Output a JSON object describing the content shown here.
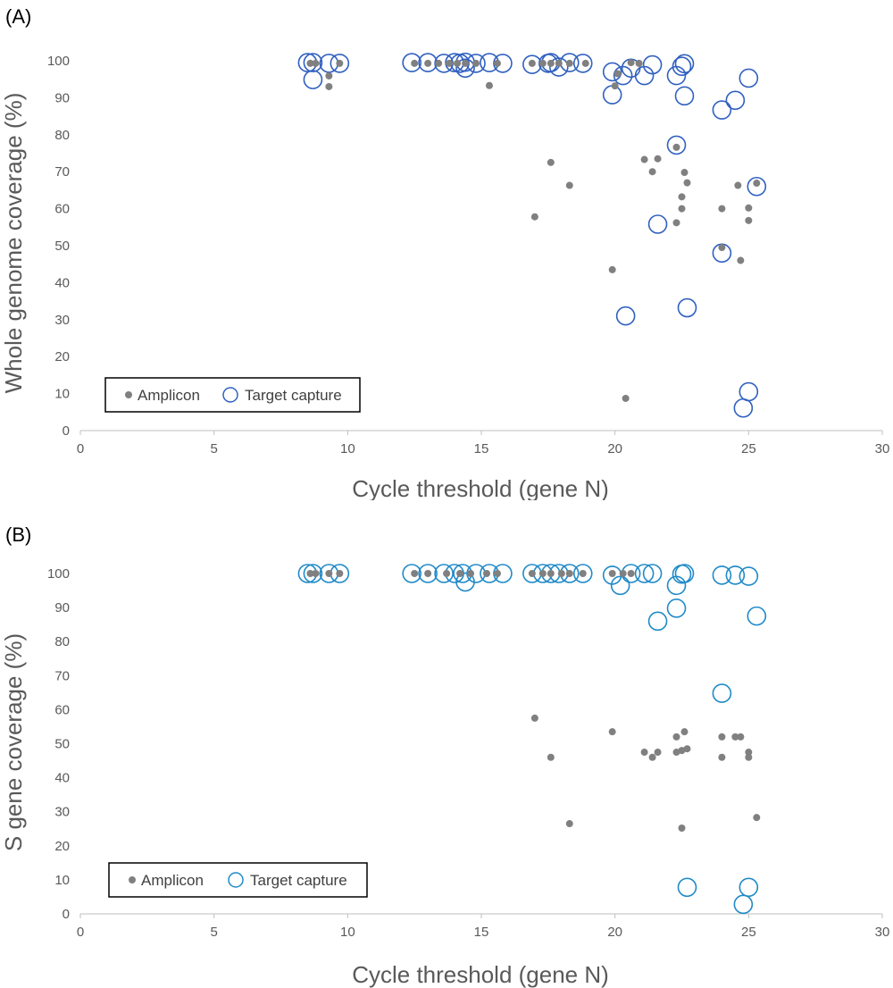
{
  "chart_data": [
    {
      "panel_label": "(A)",
      "type": "scatter",
      "xlabel": "Cycle threshold (gene N)",
      "ylabel": "Whole genome coverage (%)",
      "xlim": [
        0,
        30
      ],
      "ylim": [
        0,
        100
      ],
      "xticks": [
        0,
        5,
        10,
        15,
        20,
        25,
        30
      ],
      "yticks": [
        0,
        10,
        20,
        30,
        40,
        50,
        60,
        70,
        80,
        90,
        100
      ],
      "grid": false,
      "legend_placement": "bottom-left",
      "series": [
        {
          "name": "Amplicon",
          "marker": "filled-dot",
          "color": "#808080",
          "points": [
            [
              8.6,
              99.3
            ],
            [
              8.8,
              99.3
            ],
            [
              9.3,
              95.9
            ],
            [
              9.3,
              93.0
            ],
            [
              9.7,
              99.3
            ],
            [
              12.5,
              99.3
            ],
            [
              13.0,
              99.3
            ],
            [
              13.4,
              99.3
            ],
            [
              13.8,
              99.3
            ],
            [
              14.1,
              99.3
            ],
            [
              14.4,
              99.3
            ],
            [
              14.8,
              99.3
            ],
            [
              15.3,
              93.3
            ],
            [
              15.6,
              99.3
            ],
            [
              16.9,
              99.3
            ],
            [
              17.3,
              99.3
            ],
            [
              17.6,
              99.3
            ],
            [
              17.9,
              99.3
            ],
            [
              18.3,
              99.3
            ],
            [
              18.9,
              99.3
            ],
            [
              17.0,
              57.8
            ],
            [
              17.6,
              72.5
            ],
            [
              18.3,
              66.3
            ],
            [
              19.9,
              43.5
            ],
            [
              20.0,
              93.2
            ],
            [
              20.1,
              96.5
            ],
            [
              20.4,
              8.7
            ],
            [
              20.6,
              99.5
            ],
            [
              20.9,
              99.3
            ],
            [
              21.1,
              73.3
            ],
            [
              21.4,
              70.0
            ],
            [
              21.6,
              73.5
            ],
            [
              22.3,
              76.6
            ],
            [
              22.3,
              56.2
            ],
            [
              22.5,
              63.2
            ],
            [
              22.5,
              60.0
            ],
            [
              22.6,
              69.8
            ],
            [
              22.7,
              67.0
            ],
            [
              24.0,
              49.5
            ],
            [
              24.0,
              60.0
            ],
            [
              24.6,
              66.3
            ],
            [
              24.7,
              46.0
            ],
            [
              25.0,
              60.2
            ],
            [
              25.0,
              56.8
            ],
            [
              25.3,
              66.9
            ]
          ]
        },
        {
          "name": "Target capture",
          "marker": "open-circle",
          "color": "#3060C0",
          "points": [
            [
              8.5,
              99.5
            ],
            [
              8.7,
              99.5
            ],
            [
              8.7,
              94.9
            ],
            [
              9.3,
              99.3
            ],
            [
              9.7,
              99.3
            ],
            [
              12.4,
              99.5
            ],
            [
              13.0,
              99.5
            ],
            [
              13.6,
              99.3
            ],
            [
              14.0,
              99.5
            ],
            [
              14.2,
              99.3
            ],
            [
              14.4,
              99.6
            ],
            [
              14.4,
              98.0
            ],
            [
              14.8,
              99.3
            ],
            [
              15.3,
              99.5
            ],
            [
              15.8,
              99.3
            ],
            [
              16.9,
              99.0
            ],
            [
              17.5,
              99.3
            ],
            [
              17.6,
              99.5
            ],
            [
              17.9,
              98.3
            ],
            [
              18.3,
              99.5
            ],
            [
              18.8,
              99.3
            ],
            [
              19.9,
              97.0
            ],
            [
              19.9,
              90.8
            ],
            [
              20.3,
              96.0
            ],
            [
              20.4,
              31.0
            ],
            [
              20.6,
              98.0
            ],
            [
              21.1,
              96.0
            ],
            [
              21.4,
              98.9
            ],
            [
              21.6,
              55.8
            ],
            [
              22.3,
              96.0
            ],
            [
              22.3,
              77.2
            ],
            [
              22.5,
              98.5
            ],
            [
              22.6,
              99.2
            ],
            [
              22.6,
              90.5
            ],
            [
              22.7,
              33.2
            ],
            [
              24.0,
              86.7
            ],
            [
              24.0,
              48.0
            ],
            [
              24.5,
              89.3
            ],
            [
              24.8,
              6.1
            ],
            [
              25.0,
              95.3
            ],
            [
              25.0,
              10.5
            ],
            [
              25.3,
              66.0
            ]
          ]
        }
      ]
    },
    {
      "panel_label": "(B)",
      "type": "scatter",
      "xlabel": "Cycle threshold (gene N)",
      "ylabel": "S gene coverage (%)",
      "xlim": [
        0,
        30
      ],
      "ylim": [
        0,
        100
      ],
      "xticks": [
        0,
        5,
        10,
        15,
        20,
        25,
        30
      ],
      "yticks": [
        0,
        10,
        20,
        30,
        40,
        50,
        60,
        70,
        80,
        90,
        100
      ],
      "grid": false,
      "legend_placement": "bottom-left",
      "series": [
        {
          "name": "Amplicon",
          "marker": "filled-dot",
          "color": "#808080",
          "points": [
            [
              8.6,
              100
            ],
            [
              8.8,
              100
            ],
            [
              9.3,
              100
            ],
            [
              9.7,
              100
            ],
            [
              12.5,
              100
            ],
            [
              13.0,
              100
            ],
            [
              13.7,
              100
            ],
            [
              14.2,
              100
            ],
            [
              14.6,
              100
            ],
            [
              15.2,
              100
            ],
            [
              15.6,
              100
            ],
            [
              16.9,
              100
            ],
            [
              17.3,
              100
            ],
            [
              17.6,
              100
            ],
            [
              18.0,
              100
            ],
            [
              18.3,
              100
            ],
            [
              18.8,
              100
            ],
            [
              19.9,
              100
            ],
            [
              20.3,
              100
            ],
            [
              20.6,
              100
            ],
            [
              17.0,
              57.5
            ],
            [
              17.6,
              46.0
            ],
            [
              18.3,
              26.5
            ],
            [
              19.9,
              53.5
            ],
            [
              21.1,
              47.5
            ],
            [
              21.4,
              46.0
            ],
            [
              21.6,
              47.5
            ],
            [
              22.3,
              52.0
            ],
            [
              22.3,
              47.5
            ],
            [
              22.5,
              48.0
            ],
            [
              22.5,
              25.2
            ],
            [
              22.6,
              53.5
            ],
            [
              22.7,
              48.5
            ],
            [
              24.0,
              52.0
            ],
            [
              24.0,
              46.0
            ],
            [
              24.5,
              52.0
            ],
            [
              24.7,
              52.0
            ],
            [
              25.0,
              47.5
            ],
            [
              25.0,
              46.0
            ],
            [
              25.3,
              28.3
            ]
          ]
        },
        {
          "name": "Target capture",
          "marker": "open-circle",
          "color": "#1F8AC8",
          "points": [
            [
              8.5,
              100
            ],
            [
              8.7,
              100
            ],
            [
              9.3,
              100
            ],
            [
              9.7,
              100
            ],
            [
              12.4,
              100
            ],
            [
              13.0,
              100
            ],
            [
              13.6,
              100
            ],
            [
              14.0,
              100
            ],
            [
              14.3,
              100
            ],
            [
              14.4,
              97.5
            ],
            [
              14.8,
              100
            ],
            [
              15.3,
              100
            ],
            [
              15.8,
              100
            ],
            [
              16.9,
              100
            ],
            [
              17.3,
              100
            ],
            [
              17.6,
              100
            ],
            [
              17.9,
              100
            ],
            [
              18.3,
              100
            ],
            [
              18.8,
              100
            ],
            [
              19.9,
              99.5
            ],
            [
              20.2,
              96.5
            ],
            [
              20.6,
              100
            ],
            [
              21.1,
              100
            ],
            [
              21.4,
              100
            ],
            [
              21.6,
              86.0
            ],
            [
              22.3,
              96.5
            ],
            [
              22.3,
              89.8
            ],
            [
              22.5,
              99.8
            ],
            [
              22.6,
              100
            ],
            [
              22.7,
              7.8
            ],
            [
              24.0,
              99.5
            ],
            [
              24.0,
              64.8
            ],
            [
              24.5,
              99.5
            ],
            [
              24.8,
              2.8
            ],
            [
              25.0,
              99.2
            ],
            [
              25.0,
              7.8
            ],
            [
              25.3,
              87.5
            ]
          ]
        }
      ]
    }
  ]
}
